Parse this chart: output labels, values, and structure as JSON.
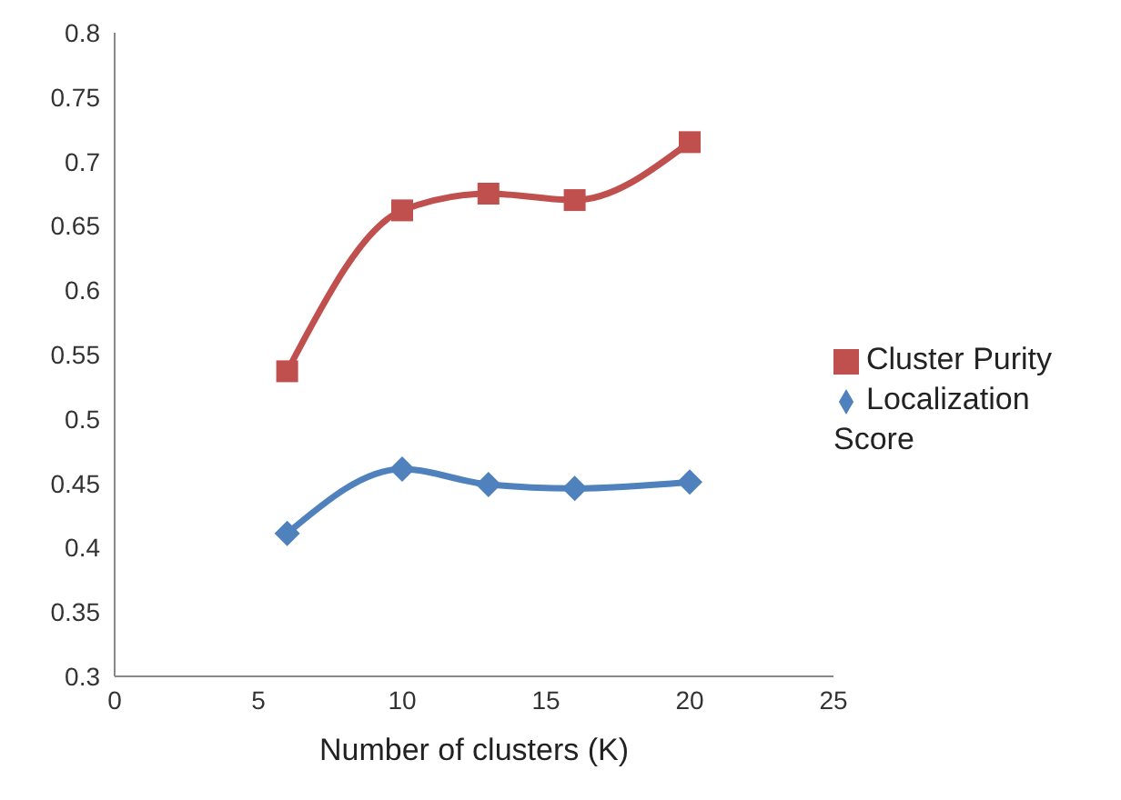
{
  "chart_data": {
    "type": "line",
    "xlabel": "Number of clusters (K)",
    "x": [
      6,
      10,
      13,
      16,
      20
    ],
    "series": [
      {
        "name": "Cluster Purity",
        "color": "#c0504d",
        "marker": "square",
        "values": [
          0.537,
          0.662,
          0.675,
          0.67,
          0.715
        ]
      },
      {
        "name": "Localization Score",
        "color": "#4f81bd",
        "marker": "diamond",
        "values": [
          0.411,
          0.461,
          0.449,
          0.446,
          0.451
        ]
      }
    ],
    "xlim": [
      0,
      25
    ],
    "xticks": [
      0,
      5,
      10,
      15,
      20,
      25
    ],
    "ylim": [
      0.3,
      0.8
    ],
    "yticks": [
      0.3,
      0.35,
      0.4,
      0.45,
      0.5,
      0.55,
      0.6,
      0.65,
      0.7,
      0.75,
      0.8
    ],
    "grid": false,
    "legend": "right",
    "line_style": "solid"
  }
}
